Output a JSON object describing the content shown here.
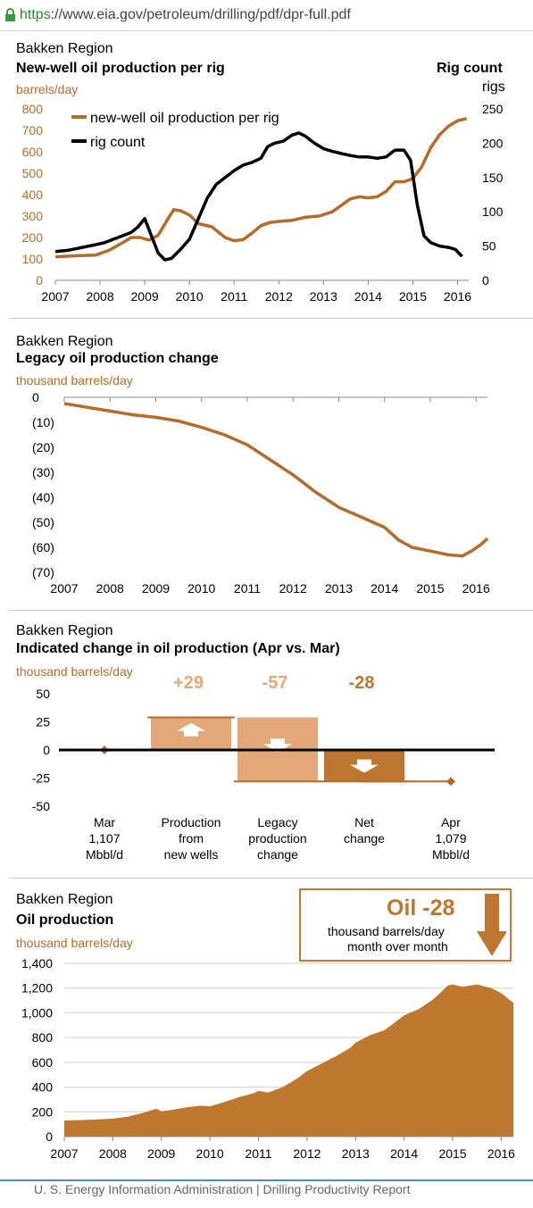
{
  "browser": {
    "url_scheme": "https",
    "url_rest": "://www.eia.gov/petroleum/drilling/pdf/dpr-full.pdf"
  },
  "chart1": {
    "region": "Bakken Region",
    "title": "New-well oil production per rig",
    "left_unit": "barrels/day",
    "right_title": "Rig count",
    "right_unit": "rigs"
  },
  "chart2": {
    "region": "Bakken Region",
    "title": "Legacy oil production change",
    "unit": "thousand barrels/day"
  },
  "chart3": {
    "region": "Bakken Region",
    "title": "Indicated change in oil production (Apr vs. Mar)",
    "unit": "thousand barrels/day"
  },
  "chart4": {
    "region": "Bakken Region",
    "title": "Oil production",
    "unit": "thousand barrels/day"
  },
  "callout": {
    "headline": "Oil -28",
    "line1": "thousand barrels/day",
    "line2": "month over month"
  },
  "footer": {
    "text": "U. S. Energy Information Administration  |  Drilling Productivity Report"
  },
  "colors": {
    "orange": "#b46c2b",
    "light_orange": "#e2a878",
    "dark_orange": "#bd7530",
    "black": "#000000",
    "area_fill": "#bd772f"
  },
  "chart_data": [
    {
      "type": "line",
      "title": "New-well oil production per rig",
      "ylabel": "barrels/day",
      "y2label": "rigs",
      "xlim": [
        2007,
        2016.25
      ],
      "ylim": [
        0,
        800
      ],
      "y2lim": [
        0,
        250
      ],
      "x_ticks": [
        "2007",
        "2008",
        "2009",
        "2010",
        "2011",
        "2012",
        "2013",
        "2014",
        "2015",
        "2016"
      ],
      "y_ticks": [
        "0",
        "100",
        "200",
        "300",
        "400",
        "500",
        "600",
        "700",
        "800"
      ],
      "y2_ticks": [
        "0",
        "50",
        "100",
        "150",
        "200",
        "250"
      ],
      "legend_position": "top-left",
      "series": [
        {
          "name": "new-well oil production per rig",
          "axis": "left",
          "color": "#b46c2b",
          "x": [
            2007.0,
            2007.5,
            2007.9,
            2008.2,
            2008.5,
            2008.7,
            2008.9,
            2009.1,
            2009.3,
            2009.5,
            2009.65,
            2009.8,
            2010.0,
            2010.2,
            2010.5,
            2010.8,
            2011.0,
            2011.2,
            2011.4,
            2011.6,
            2011.8,
            2012.0,
            2012.3,
            2012.6,
            2012.9,
            2013.2,
            2013.4,
            2013.6,
            2013.8,
            2014.0,
            2014.2,
            2014.4,
            2014.6,
            2014.8,
            2015.0,
            2015.2,
            2015.4,
            2015.6,
            2015.8,
            2016.0,
            2016.2
          ],
          "values": [
            110,
            115,
            118,
            140,
            175,
            200,
            200,
            188,
            210,
            280,
            330,
            325,
            305,
            265,
            250,
            200,
            185,
            190,
            220,
            255,
            270,
            275,
            280,
            295,
            300,
            320,
            350,
            380,
            390,
            385,
            390,
            415,
            460,
            460,
            475,
            530,
            620,
            680,
            720,
            745,
            755
          ]
        },
        {
          "name": "rig count",
          "axis": "right",
          "color": "#000000",
          "x": [
            2007.0,
            2007.3,
            2007.6,
            2007.9,
            2008.1,
            2008.3,
            2008.5,
            2008.7,
            2008.85,
            2009.0,
            2009.15,
            2009.3,
            2009.45,
            2009.6,
            2009.8,
            2010.0,
            2010.2,
            2010.4,
            2010.6,
            2010.8,
            2011.0,
            2011.2,
            2011.4,
            2011.6,
            2011.75,
            2011.9,
            2012.1,
            2012.3,
            2012.45,
            2012.6,
            2012.8,
            2013.0,
            2013.2,
            2013.4,
            2013.6,
            2013.8,
            2014.0,
            2014.2,
            2014.4,
            2014.6,
            2014.8,
            2014.95,
            2015.1,
            2015.25,
            2015.4,
            2015.6,
            2015.8,
            2015.95,
            2016.1
          ],
          "values": [
            42,
            44,
            48,
            52,
            55,
            60,
            65,
            70,
            78,
            90,
            65,
            40,
            30,
            32,
            45,
            60,
            90,
            120,
            140,
            150,
            160,
            168,
            172,
            178,
            195,
            200,
            203,
            212,
            215,
            210,
            200,
            192,
            188,
            185,
            182,
            180,
            180,
            178,
            180,
            190,
            190,
            175,
            110,
            65,
            55,
            50,
            48,
            45,
            35
          ]
        }
      ]
    },
    {
      "type": "line",
      "title": "Legacy oil production change",
      "ylabel": "thousand barrels/day",
      "xlim": [
        2007,
        2016.25
      ],
      "ylim": [
        -70,
        0
      ],
      "x_ticks": [
        "2007",
        "2008",
        "2009",
        "2010",
        "2011",
        "2012",
        "2013",
        "2014",
        "2015",
        "2016"
      ],
      "y_ticks": [
        "0",
        "(10)",
        "(20)",
        "(30)",
        "(40)",
        "(50)",
        "(60)",
        "(70)"
      ],
      "series": [
        {
          "name": "",
          "color": "#b46c2b",
          "x": [
            2007.0,
            2007.5,
            2008.0,
            2008.5,
            2009.0,
            2009.5,
            2010.0,
            2010.5,
            2011.0,
            2011.5,
            2012.0,
            2012.5,
            2013.0,
            2013.5,
            2014.0,
            2014.3,
            2014.6,
            2015.0,
            2015.4,
            2015.7,
            2015.9,
            2016.1,
            2016.25
          ],
          "values": [
            -2.5,
            -4,
            -5.5,
            -7,
            -8,
            -9.5,
            -12,
            -15,
            -19,
            -25,
            -31,
            -38,
            -44,
            -48,
            -52,
            -57,
            -60,
            -61.5,
            -63,
            -63.5,
            -61.5,
            -59,
            -56.5
          ]
        }
      ]
    },
    {
      "type": "bar",
      "title": "Indicated change in oil production (Apr vs. Mar)",
      "ylabel": "thousand barrels/day",
      "ylim": [
        -50,
        50
      ],
      "y_ticks": [
        "50",
        "25",
        "0",
        "-25",
        "-50"
      ],
      "categories": [
        "Mar 1,107 Mbbl/d",
        "Production from new wells",
        "Legacy production change",
        "Net change",
        "Apr 1,079 Mbbl/d"
      ],
      "category_lines": [
        [
          "Mar",
          "1,107",
          "Mbbl/d"
        ],
        [
          "Production",
          "from",
          "new wells"
        ],
        [
          "Legacy",
          "production",
          "change"
        ],
        [
          "Net",
          "change"
        ],
        [
          "Apr",
          "1,079",
          "Mbbl/d"
        ]
      ],
      "values": [
        0,
        29,
        -57,
        -28,
        -28
      ],
      "value_labels": [
        "",
        "+29",
        "-57",
        "-28",
        ""
      ]
    },
    {
      "type": "area",
      "title": "Oil production",
      "ylabel": "thousand barrels/day",
      "xlim": [
        2007,
        2016.25
      ],
      "ylim": [
        0,
        1400
      ],
      "x_ticks": [
        "2007",
        "2008",
        "2009",
        "2010",
        "2011",
        "2012",
        "2013",
        "2014",
        "2015",
        "2016"
      ],
      "y_ticks": [
        "0",
        "200",
        "400",
        "600",
        "800",
        "1,000",
        "1,200",
        "1,400"
      ],
      "series": [
        {
          "name": "",
          "color": "#bd772f",
          "x": [
            2007.0,
            2007.5,
            2008.0,
            2008.3,
            2008.6,
            2008.9,
            2009.0,
            2009.2,
            2009.5,
            2009.8,
            2010.0,
            2010.3,
            2010.6,
            2010.9,
            2011.0,
            2011.2,
            2011.5,
            2011.8,
            2012.0,
            2012.3,
            2012.6,
            2012.9,
            2013.0,
            2013.3,
            2013.6,
            2013.9,
            2014.0,
            2014.3,
            2014.6,
            2014.9,
            2015.0,
            2015.2,
            2015.5,
            2015.8,
            2016.0,
            2016.25
          ],
          "values": [
            130,
            135,
            145,
            160,
            190,
            225,
            205,
            215,
            235,
            250,
            245,
            280,
            320,
            350,
            370,
            355,
            400,
            470,
            530,
            590,
            650,
            720,
            760,
            820,
            860,
            950,
            980,
            1030,
            1110,
            1220,
            1230,
            1210,
            1230,
            1200,
            1160,
            1080
          ]
        }
      ]
    }
  ]
}
